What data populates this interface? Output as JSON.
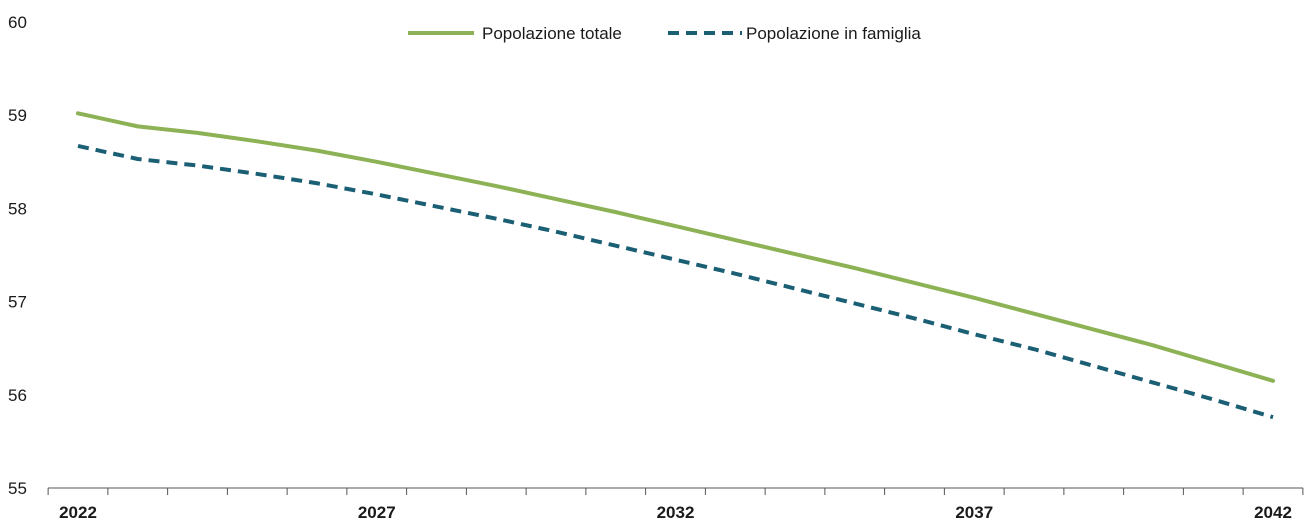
{
  "chart_data": {
    "type": "line",
    "x": [
      2022,
      2023,
      2024,
      2025,
      2026,
      2027,
      2028,
      2029,
      2030,
      2031,
      2032,
      2033,
      2034,
      2035,
      2036,
      2037,
      2038,
      2039,
      2040,
      2041,
      2042
    ],
    "x_tick_labels": [
      "2022",
      "2027",
      "2032",
      "2037",
      "2042"
    ],
    "y_tick_labels": [
      "55",
      "56",
      "57",
      "58",
      "59",
      "60"
    ],
    "ylim": [
      55,
      60
    ],
    "grid": false,
    "legend_position": "top-center",
    "series": [
      {
        "name": "Popolazione totale",
        "style": "solid",
        "color": "#8db255",
        "values": [
          59.02,
          58.88,
          58.81,
          58.72,
          58.62,
          58.5,
          58.37,
          58.24,
          58.1,
          57.96,
          57.81,
          57.66,
          57.51,
          57.36,
          57.2,
          57.04,
          56.87,
          56.7,
          56.53,
          56.34,
          56.15
        ]
      },
      {
        "name": "Popolazione in famiglia",
        "style": "dashed",
        "color": "#1b5f74",
        "values": [
          58.67,
          58.53,
          58.46,
          58.37,
          58.27,
          58.15,
          58.02,
          57.89,
          57.75,
          57.6,
          57.45,
          57.3,
          57.14,
          56.98,
          56.82,
          56.65,
          56.49,
          56.31,
          56.13,
          55.95,
          55.76
        ]
      }
    ]
  }
}
